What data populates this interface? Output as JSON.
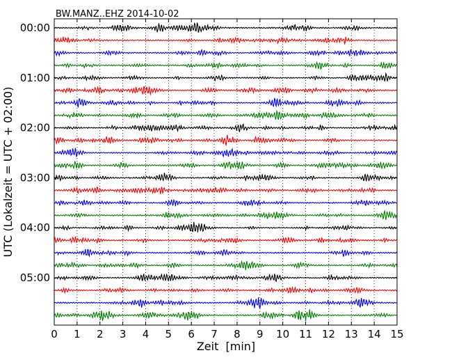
{
  "chart_data": {
    "type": "line",
    "title": "BW.MANZ..EHZ 2014-10-02",
    "xlabel": "Zeit  [min]",
    "ylabel": "UTC (Lokalzeit = UTC + 02:00)",
    "xlim": [
      0,
      15
    ],
    "x_ticks": [
      "0",
      "1",
      "2",
      "3",
      "4",
      "5",
      "6",
      "7",
      "8",
      "9",
      "10",
      "11",
      "12",
      "13",
      "14",
      "15"
    ],
    "y_ticks": [
      "00:00",
      "01:00",
      "02:00",
      "03:00",
      "04:00",
      "05:00"
    ],
    "grid": "vertical dotted lines at each minute",
    "trace_interval_minutes": 15,
    "trace_count": 24,
    "trace_colors": [
      "#000000",
      "#ff0000",
      "#0000ff",
      "#008000"
    ],
    "trace_start_times": [
      "00:00",
      "00:15",
      "00:30",
      "00:45",
      "01:00",
      "01:15",
      "01:30",
      "01:45",
      "02:00",
      "02:15",
      "02:30",
      "02:45",
      "03:00",
      "03:15",
      "03:30",
      "03:45",
      "04:00",
      "04:15",
      "04:30",
      "04:45",
      "05:00",
      "05:15",
      "05:30",
      "05:45"
    ]
  }
}
